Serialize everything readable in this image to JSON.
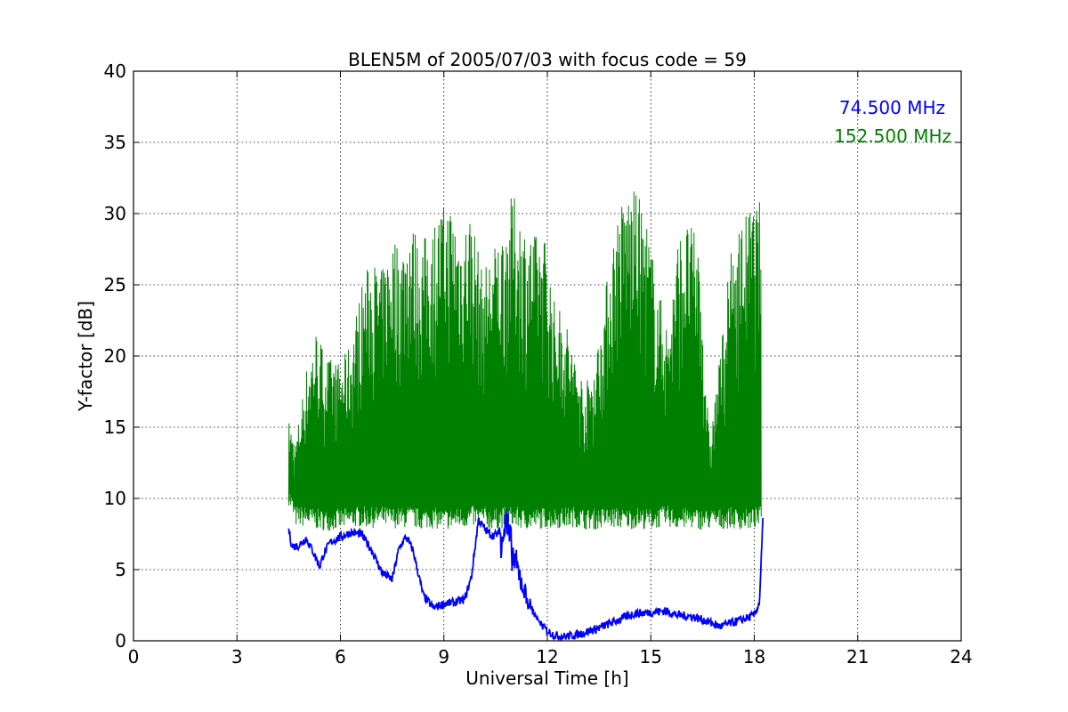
{
  "chart_data": {
    "type": "line",
    "title": "BLEN5M of 2005/07/03 with focus code = 59",
    "xlabel": "Universal Time [h]",
    "ylabel": "Y-factor [dB]",
    "xlim": [
      0,
      24
    ],
    "ylim": [
      0,
      40
    ],
    "xticks": [
      0,
      3,
      6,
      9,
      12,
      15,
      18,
      21,
      24
    ],
    "yticks": [
      0,
      5,
      10,
      15,
      20,
      25,
      30,
      35,
      40
    ],
    "grid": true,
    "legend_placement": "top-right",
    "series": [
      {
        "name": "74.500 MHz",
        "color": "#0000ff",
        "x": [
          4.5,
          4.6,
          4.8,
          5.0,
          5.2,
          5.4,
          5.5,
          5.7,
          6.0,
          6.3,
          6.6,
          6.9,
          7.2,
          7.5,
          7.7,
          7.9,
          8.1,
          8.4,
          8.7,
          9.0,
          9.3,
          9.6,
          9.8,
          10.0,
          10.2,
          10.4,
          10.6,
          10.8,
          11.0,
          11.2,
          11.4,
          11.6,
          11.8,
          12.0,
          12.2,
          12.5,
          12.8,
          13.1,
          13.5,
          14.0,
          14.5,
          15.0,
          15.4,
          15.8,
          16.2,
          16.6,
          17.0,
          17.4,
          17.8,
          18.0,
          18.15,
          18.25
        ],
        "y": [
          7.8,
          6.6,
          6.7,
          7.2,
          6.3,
          5.2,
          6.0,
          6.9,
          7.3,
          7.6,
          7.5,
          6.4,
          4.8,
          4.3,
          6.5,
          7.3,
          6.4,
          3.2,
          2.3,
          2.6,
          2.7,
          2.9,
          4.5,
          8.5,
          7.8,
          7.4,
          7.5,
          8.2,
          6.0,
          4.5,
          3.0,
          2.0,
          1.2,
          0.7,
          0.4,
          0.3,
          0.4,
          0.6,
          0.9,
          1.4,
          1.9,
          2.0,
          2.1,
          1.8,
          1.7,
          1.4,
          1.0,
          1.3,
          1.6,
          1.8,
          2.7,
          8.5
        ]
      },
      {
        "name": "152.500 MHz",
        "color": "#008000",
        "x": [
          4.5,
          4.7,
          5.0,
          5.3,
          5.6,
          6.0,
          6.3,
          6.6,
          6.9,
          7.2,
          7.5,
          7.8,
          8.0,
          8.3,
          8.6,
          8.9,
          9.2,
          9.5,
          9.8,
          10.1,
          10.4,
          10.7,
          11.0,
          11.3,
          11.6,
          11.9,
          12.2,
          12.5,
          12.8,
          13.1,
          13.4,
          13.7,
          14.0,
          14.3,
          14.6,
          14.9,
          15.2,
          15.5,
          15.8,
          16.1,
          16.4,
          16.7,
          17.0,
          17.3,
          17.6,
          17.9,
          18.2
        ],
        "y_low": [
          9.5,
          8.0,
          8.0,
          7.8,
          7.7,
          7.8,
          7.9,
          8.0,
          7.9,
          8.0,
          7.9,
          7.9,
          8.0,
          7.8,
          7.9,
          7.8,
          7.8,
          7.9,
          8.0,
          8.0,
          7.8,
          7.9,
          8.0,
          7.8,
          7.8,
          7.9,
          7.9,
          7.9,
          8.0,
          7.8,
          7.8,
          7.9,
          7.9,
          7.8,
          7.9,
          7.8,
          7.9,
          8.0,
          7.8,
          7.9,
          7.8,
          7.8,
          7.8,
          7.9,
          7.8,
          7.8,
          8.0
        ],
        "y_high": [
          15.5,
          14.0,
          19.0,
          22.0,
          20.0,
          19.5,
          21.0,
          25.0,
          27.0,
          26.0,
          28.5,
          28.0,
          30.0,
          28.0,
          29.0,
          30.5,
          31.0,
          29.0,
          30.5,
          26.0,
          27.5,
          29.0,
          31.5,
          29.5,
          28.5,
          29.0,
          24.0,
          23.0,
          20.0,
          18.0,
          20.0,
          25.0,
          30.0,
          31.8,
          31.6,
          29.5,
          25.0,
          22.0,
          28.5,
          29.5,
          28.0,
          14.0,
          20.0,
          27.0,
          29.5,
          30.5,
          31.0
        ]
      }
    ]
  }
}
